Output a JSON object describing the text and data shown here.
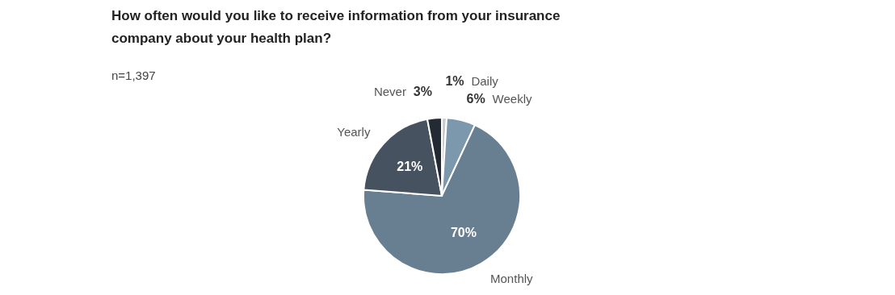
{
  "chart_data": {
    "type": "pie",
    "title": "How often would you like to receive information from your insurance company about your health plan?",
    "subtitle": "n=1,397",
    "categories": [
      "Daily",
      "Weekly",
      "Monthly",
      "Yearly",
      "Never"
    ],
    "values": [
      1,
      6,
      70,
      21,
      3
    ],
    "value_labels": [
      "1%",
      "6%",
      "70%",
      "21%",
      "3%"
    ],
    "colors": [
      "#c8ccd1",
      "#7b98ad",
      "#687e91",
      "#475261",
      "#232a33"
    ]
  }
}
